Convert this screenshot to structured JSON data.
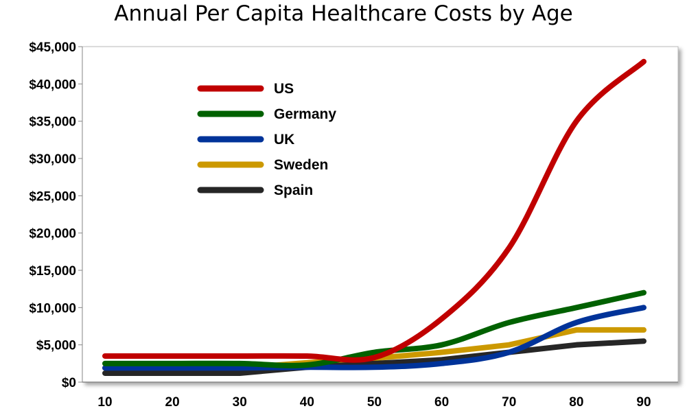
{
  "chart_data": {
    "type": "line",
    "title": "Annual Per Capita Healthcare Costs by Age",
    "xlabel": "",
    "ylabel": "",
    "x": [
      10,
      20,
      30,
      40,
      50,
      60,
      70,
      80,
      90
    ],
    "xlim": [
      10,
      90
    ],
    "ylim": [
      0,
      45000
    ],
    "y_ticks": [
      "$0",
      "$5,000",
      "$10,000",
      "$15,000",
      "$20,000",
      "$25,000",
      "$30,000",
      "$35,000",
      "$40,000",
      "$45,000"
    ],
    "x_ticks": [
      "10",
      "20",
      "30",
      "40",
      "50",
      "60",
      "70",
      "80",
      "90"
    ],
    "grid": false,
    "legend_position": "top-left inside plot",
    "series": [
      {
        "name": "US",
        "color": "#C00000",
        "smooth": true,
        "values": [
          3500,
          3500,
          3500,
          3500,
          3300,
          8500,
          18000,
          35000,
          43000
        ]
      },
      {
        "name": "Germany",
        "color": "#006100",
        "smooth": true,
        "values": [
          2500,
          2500,
          2500,
          2300,
          4000,
          5000,
          8000,
          10000,
          12000
        ]
      },
      {
        "name": "UK",
        "color": "#003399",
        "smooth": true,
        "values": [
          1900,
          1900,
          1900,
          2000,
          2000,
          2500,
          4000,
          8000,
          10000
        ]
      },
      {
        "name": "Sweden",
        "color": "#CC9900",
        "smooth": false,
        "values": [
          1900,
          1900,
          1900,
          2600,
          3200,
          4000,
          5000,
          7000,
          7000
        ]
      },
      {
        "name": "Spain",
        "color": "#262626",
        "smooth": false,
        "values": [
          1200,
          1200,
          1200,
          2000,
          2500,
          3000,
          4000,
          5000,
          5500
        ]
      }
    ]
  }
}
